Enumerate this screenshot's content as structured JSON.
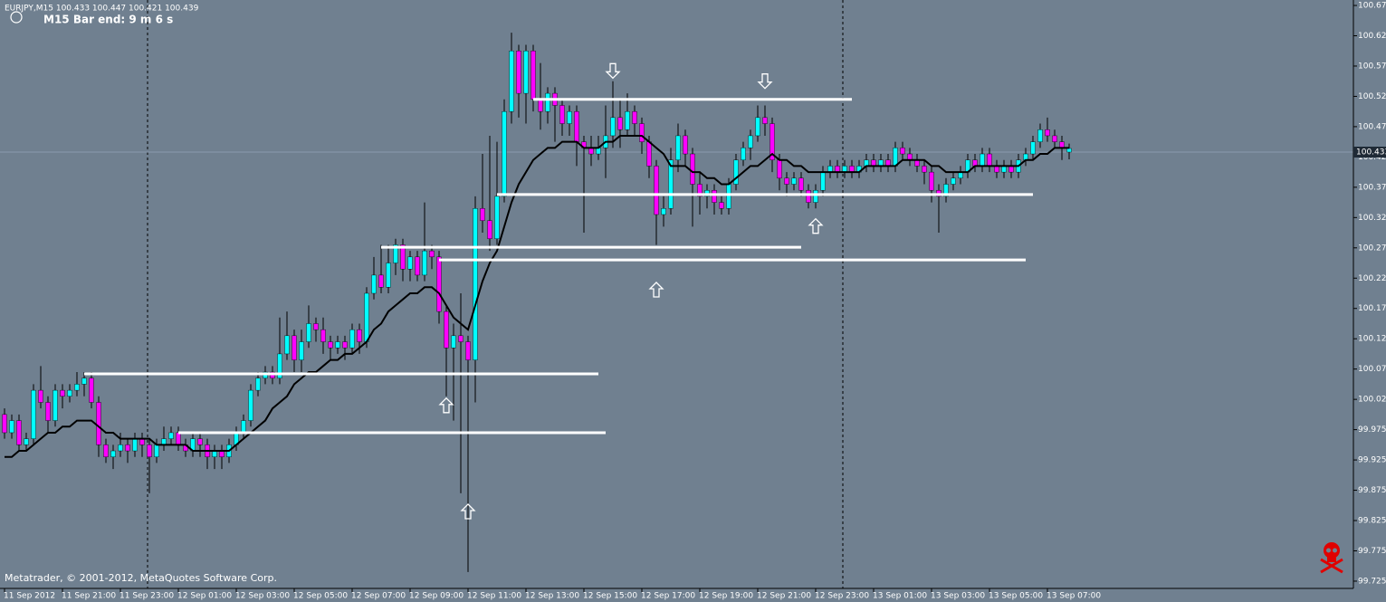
{
  "chart_data": {
    "type": "candlestick",
    "title": "EURJPY,M15  100.433 100.447 100.421 100.439",
    "subtitle": "M15 Bar end: 9 m 6 s",
    "footnote": "Metatrader, © 2001-2012, MetaQuotes Software Corp.",
    "up_color": "#00ffff",
    "down_color": "#ff00ff",
    "level_color": "#ffffff",
    "categories": [
      "11 Sep 2012",
      null,
      null,
      null,
      null,
      null,
      null,
      null,
      "11 Sep 21:00",
      null,
      null,
      null,
      null,
      null,
      null,
      null,
      "11 Sep 23:00",
      null,
      null,
      null,
      null,
      null,
      null,
      null,
      "12 Sep 01:00",
      null,
      null,
      null,
      null,
      null,
      null,
      null,
      "12 Sep 03:00",
      null,
      null,
      null,
      null,
      null,
      null,
      null,
      "12 Sep 05:00",
      null,
      null,
      null,
      null,
      null,
      null,
      null,
      "12 Sep 07:00",
      null,
      null,
      null,
      null,
      null,
      null,
      null,
      "12 Sep 09:00",
      null,
      null,
      null,
      null,
      null,
      null,
      null,
      "12 Sep 11:00",
      null,
      null,
      null,
      null,
      null,
      null,
      null,
      "12 Sep 13:00",
      null,
      null,
      null,
      null,
      null,
      null,
      null,
      "12 Sep 15:00",
      null,
      null,
      null,
      null,
      null,
      null,
      null,
      "12 Sep 17:00",
      null,
      null,
      null,
      null,
      null,
      null,
      null,
      "12 Sep 19:00",
      null,
      null,
      null,
      null,
      null,
      null,
      null,
      "12 Sep 21:00",
      null,
      null,
      null,
      null,
      null,
      null,
      null,
      "12 Sep 23:00",
      null,
      null,
      null,
      null,
      null,
      null,
      null,
      "13 Sep 01:00",
      null,
      null,
      null,
      null,
      null,
      null,
      null,
      "13 Sep 03:00",
      null,
      null,
      null,
      null,
      null,
      null,
      null,
      "13 Sep 05:00",
      null,
      null,
      null,
      null,
      null,
      null,
      null,
      "13 Sep 07:00",
      null,
      null,
      null
    ],
    "open": [
      100.0,
      99.97,
      99.99,
      99.95,
      99.96,
      100.04,
      100.02,
      99.99,
      100.04,
      100.03,
      100.04,
      100.05,
      100.06,
      100.02,
      99.95,
      99.93,
      99.94,
      99.95,
      99.94,
      99.96,
      99.95,
      99.93,
      99.95,
      99.96,
      99.97,
      99.95,
      99.94,
      99.96,
      99.95,
      99.93,
      99.94,
      99.93,
      99.95,
      99.97,
      99.99,
      100.04,
      100.06,
      100.07,
      100.06,
      100.1,
      100.13,
      100.09,
      100.12,
      100.15,
      100.14,
      100.12,
      100.11,
      100.12,
      100.11,
      100.14,
      100.12,
      100.2,
      100.23,
      100.21,
      100.25,
      100.28,
      100.24,
      100.26,
      100.23,
      100.27,
      100.26,
      100.17,
      100.11,
      100.13,
      100.12,
      100.09,
      100.34,
      100.32,
      100.29,
      100.36,
      100.5,
      100.6,
      100.53,
      100.6,
      100.52,
      100.5,
      100.53,
      100.51,
      100.48,
      100.5,
      100.45,
      100.44,
      100.43,
      100.44,
      100.46,
      100.49,
      100.47,
      100.5,
      100.48,
      100.45,
      100.41,
      100.33,
      100.34,
      100.42,
      100.46,
      100.43,
      100.38,
      100.36,
      100.37,
      100.35,
      100.34,
      100.38,
      100.42,
      100.44,
      100.46,
      100.49,
      100.48,
      100.42,
      100.39,
      100.38,
      100.39,
      100.37,
      100.35,
      100.37,
      100.4,
      100.41,
      100.4,
      100.41,
      100.4,
      100.41,
      100.42,
      100.41,
      100.42,
      100.41,
      100.44,
      100.43,
      100.42,
      100.41,
      100.4,
      100.37,
      100.36,
      100.38,
      100.39,
      100.4,
      100.42,
      100.41,
      100.43,
      100.41,
      100.4,
      100.41,
      100.4,
      100.42,
      100.43,
      100.45,
      100.47,
      100.46,
      100.45,
      100.433
    ],
    "high": [
      100.01,
      100.0,
      100.0,
      99.97,
      100.05,
      100.08,
      100.03,
      100.05,
      100.05,
      100.05,
      100.07,
      100.07,
      100.07,
      100.03,
      99.96,
      99.95,
      99.97,
      99.96,
      99.97,
      99.97,
      99.96,
      99.96,
      99.98,
      99.98,
      99.98,
      99.96,
      99.97,
      99.97,
      99.96,
      99.95,
      99.95,
      99.96,
      99.98,
      100.0,
      100.05,
      100.07,
      100.08,
      100.08,
      100.16,
      100.17,
      100.14,
      100.14,
      100.18,
      100.16,
      100.16,
      100.13,
      100.13,
      100.13,
      100.15,
      100.15,
      100.21,
      100.26,
      100.28,
      100.28,
      100.29,
      100.29,
      100.27,
      100.27,
      100.35,
      100.28,
      100.27,
      100.18,
      100.15,
      100.2,
      100.13,
      100.36,
      100.43,
      100.46,
      100.45,
      100.52,
      100.63,
      100.61,
      100.61,
      100.61,
      100.58,
      100.54,
      100.54,
      100.52,
      100.51,
      100.51,
      100.46,
      100.46,
      100.46,
      100.51,
      100.55,
      100.52,
      100.53,
      100.51,
      100.49,
      100.46,
      100.42,
      100.36,
      100.44,
      100.48,
      100.47,
      100.44,
      100.4,
      100.38,
      100.38,
      100.36,
      100.39,
      100.43,
      100.45,
      100.47,
      100.51,
      100.51,
      100.49,
      100.43,
      100.4,
      100.4,
      100.4,
      100.38,
      100.38,
      100.41,
      100.42,
      100.42,
      100.42,
      100.42,
      100.42,
      100.43,
      100.43,
      100.43,
      100.43,
      100.45,
      100.45,
      100.44,
      100.43,
      100.42,
      100.41,
      100.38,
      100.39,
      100.4,
      100.41,
      100.43,
      100.43,
      100.44,
      100.44,
      100.42,
      100.42,
      100.42,
      100.43,
      100.44,
      100.46,
      100.48,
      100.49,
      100.47,
      100.46,
      100.447
    ],
    "low": [
      99.96,
      99.96,
      99.94,
      99.94,
      99.95,
      100.01,
      99.97,
      99.98,
      100.01,
      100.02,
      100.03,
      100.03,
      100.01,
      99.93,
      99.92,
      99.91,
      99.93,
      99.92,
      99.93,
      99.93,
      99.87,
      99.92,
      99.94,
      99.95,
      99.94,
      99.93,
      99.93,
      99.93,
      99.91,
      99.91,
      99.91,
      99.92,
      99.94,
      99.96,
      99.98,
      100.03,
      100.05,
      100.05,
      100.05,
      100.09,
      100.07,
      100.07,
      100.11,
      100.12,
      100.1,
      100.09,
      100.1,
      100.09,
      100.1,
      100.1,
      100.11,
      100.19,
      100.2,
      100.2,
      100.23,
      100.22,
      100.22,
      100.22,
      100.22,
      100.24,
      100.15,
      100.03,
      99.99,
      99.87,
      99.74,
      100.02,
      100.3,
      100.27,
      100.28,
      100.35,
      100.48,
      100.49,
      100.48,
      100.5,
      100.47,
      100.48,
      100.45,
      100.46,
      100.46,
      100.41,
      100.3,
      100.41,
      100.42,
      100.39,
      100.44,
      100.44,
      100.46,
      100.46,
      100.43,
      100.39,
      100.28,
      100.31,
      100.33,
      100.4,
      100.41,
      100.31,
      100.33,
      100.34,
      100.33,
      100.33,
      100.33,
      100.37,
      100.41,
      100.42,
      100.45,
      100.46,
      100.4,
      100.37,
      100.36,
      100.37,
      100.36,
      100.34,
      100.34,
      100.36,
      100.39,
      100.39,
      100.39,
      100.39,
      100.39,
      100.4,
      100.4,
      100.4,
      100.4,
      100.4,
      100.42,
      100.41,
      100.4,
      100.38,
      100.35,
      100.3,
      100.35,
      100.37,
      100.38,
      100.39,
      100.4,
      100.4,
      100.4,
      100.39,
      100.39,
      100.39,
      100.39,
      100.41,
      100.42,
      100.44,
      100.45,
      100.44,
      100.42,
      100.421
    ],
    "close": [
      99.97,
      99.99,
      99.95,
      99.96,
      100.04,
      100.02,
      99.99,
      100.04,
      100.03,
      100.04,
      100.05,
      100.06,
      100.02,
      99.95,
      99.93,
      99.94,
      99.95,
      99.94,
      99.96,
      99.95,
      99.93,
      99.95,
      99.96,
      99.97,
      99.95,
      99.94,
      99.96,
      99.95,
      99.93,
      99.94,
      99.93,
      99.95,
      99.97,
      99.99,
      100.04,
      100.06,
      100.07,
      100.06,
      100.1,
      100.13,
      100.09,
      100.12,
      100.15,
      100.14,
      100.12,
      100.11,
      100.12,
      100.11,
      100.14,
      100.12,
      100.2,
      100.23,
      100.21,
      100.25,
      100.28,
      100.24,
      100.26,
      100.23,
      100.27,
      100.26,
      100.17,
      100.11,
      100.13,
      100.12,
      100.09,
      100.34,
      100.32,
      100.29,
      100.36,
      100.5,
      100.6,
      100.53,
      100.6,
      100.52,
      100.5,
      100.53,
      100.51,
      100.48,
      100.5,
      100.45,
      100.44,
      100.43,
      100.44,
      100.46,
      100.49,
      100.47,
      100.5,
      100.48,
      100.45,
      100.41,
      100.33,
      100.34,
      100.42,
      100.46,
      100.43,
      100.38,
      100.36,
      100.37,
      100.35,
      100.34,
      100.38,
      100.42,
      100.44,
      100.46,
      100.49,
      100.48,
      100.42,
      100.39,
      100.38,
      100.39,
      100.37,
      100.35,
      100.37,
      100.4,
      100.41,
      100.4,
      100.41,
      100.4,
      100.41,
      100.42,
      100.41,
      100.42,
      100.41,
      100.44,
      100.43,
      100.42,
      100.41,
      100.4,
      100.37,
      100.36,
      100.38,
      100.39,
      100.4,
      100.42,
      100.41,
      100.43,
      100.41,
      100.4,
      100.41,
      100.4,
      100.42,
      100.43,
      100.45,
      100.47,
      100.46,
      100.45,
      100.44,
      100.439
    ],
    "series": [
      {
        "color": "#000000",
        "values": [
          99.93,
          99.93,
          99.94,
          99.94,
          99.95,
          99.96,
          99.97,
          99.97,
          99.98,
          99.98,
          99.99,
          99.99,
          99.99,
          99.98,
          99.97,
          99.97,
          99.96,
          99.96,
          99.96,
          99.96,
          99.96,
          99.95,
          99.95,
          99.95,
          99.95,
          99.95,
          99.94,
          99.94,
          99.94,
          99.94,
          99.94,
          99.94,
          99.95,
          99.96,
          99.97,
          99.98,
          99.99,
          100.01,
          100.02,
          100.03,
          100.05,
          100.06,
          100.07,
          100.07,
          100.08,
          100.09,
          100.09,
          100.1,
          100.1,
          100.11,
          100.12,
          100.14,
          100.15,
          100.17,
          100.18,
          100.19,
          100.2,
          100.2,
          100.21,
          100.21,
          100.2,
          100.18,
          100.16,
          100.15,
          100.14,
          100.18,
          100.22,
          100.25,
          100.27,
          100.31,
          100.35,
          100.38,
          100.4,
          100.42,
          100.43,
          100.44,
          100.44,
          100.45,
          100.45,
          100.45,
          100.44,
          100.44,
          100.44,
          100.45,
          100.45,
          100.46,
          100.46,
          100.46,
          100.46,
          100.45,
          100.44,
          100.43,
          100.41,
          100.41,
          100.41,
          100.4,
          100.4,
          100.39,
          100.39,
          100.38,
          100.38,
          100.39,
          100.4,
          100.41,
          100.41,
          100.42,
          100.43,
          100.42,
          100.42,
          100.41,
          100.41,
          100.4,
          100.4,
          100.4,
          100.4,
          100.4,
          100.4,
          100.4,
          100.4,
          100.41,
          100.41,
          100.41,
          100.41,
          100.41,
          100.42,
          100.42,
          100.42,
          100.42,
          100.41,
          100.41,
          100.4,
          100.4,
          100.4,
          100.4,
          100.41,
          100.41,
          100.41,
          100.41,
          100.41,
          100.41,
          100.41,
          100.42,
          100.42,
          100.43,
          100.43,
          100.44,
          100.44,
          100.44
        ]
      }
    ],
    "levels": [
      {
        "value": 100.067,
        "start": 11,
        "end": 82
      },
      {
        "value": 99.97,
        "start": 24,
        "end": 83
      },
      {
        "value": 100.276,
        "start": 52,
        "end": 110
      },
      {
        "value": 100.255,
        "start": 60,
        "end": 141
      },
      {
        "value": 100.52,
        "start": 73,
        "end": 117
      },
      {
        "value": 100.363,
        "start": 68,
        "end": 142
      }
    ],
    "signals": [
      {
        "index": 84,
        "value": 100.567,
        "kind": "down"
      },
      {
        "index": 105,
        "value": 100.55,
        "kind": "down"
      },
      {
        "index": 61,
        "value": 100.015,
        "kind": "up"
      },
      {
        "index": 64,
        "value": 99.84,
        "kind": "up"
      },
      {
        "index": 90,
        "value": 100.206,
        "kind": "up"
      },
      {
        "index": 112,
        "value": 100.311,
        "kind": "up"
      }
    ],
    "current_price": 100.433,
    "ylim": [
      99.713,
      100.684
    ],
    "yticks": [
      100.675,
      100.625,
      100.575,
      100.525,
      100.475,
      100.425,
      100.375,
      100.325,
      100.275,
      100.225,
      100.175,
      100.125,
      100.075,
      100.025,
      99.975,
      99.925,
      99.875,
      99.825,
      99.775,
      99.725
    ]
  }
}
